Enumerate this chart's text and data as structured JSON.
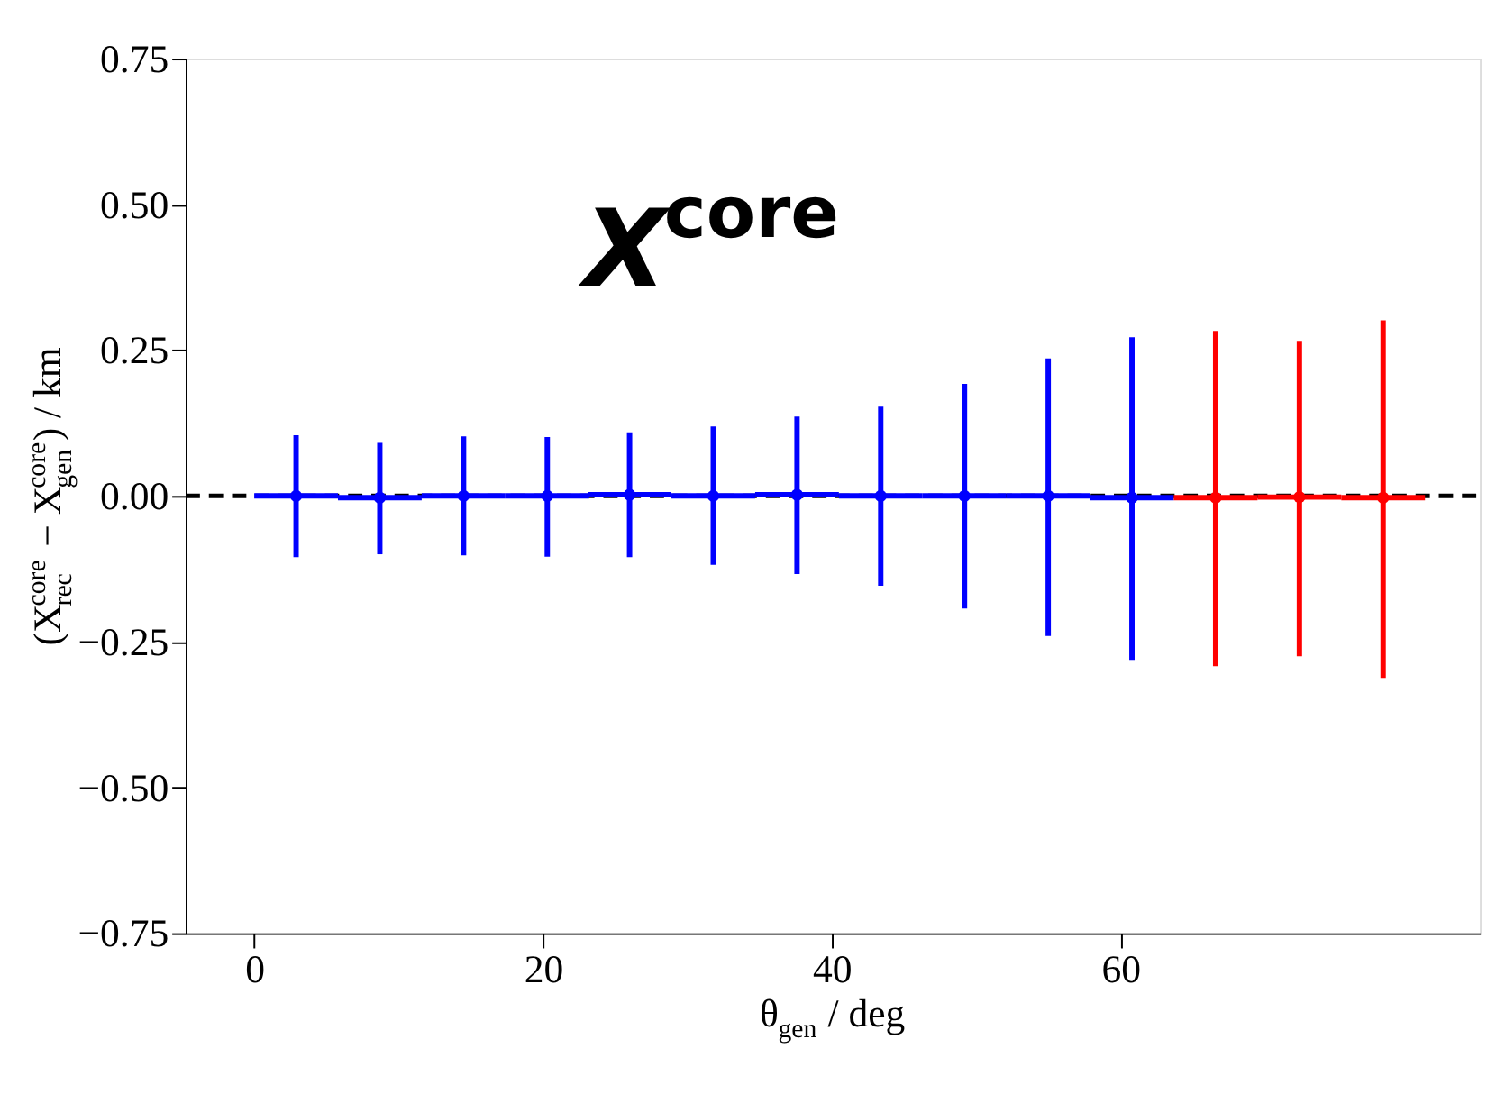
{
  "chart_data": {
    "type": "scatter",
    "xlabel": "θ$_{gen}$ / deg",
    "ylabel": "(X$_{rec}$$^{core}$ − X$_{gen}$$^{core}$) / km",
    "annotations": [
      "X$^{core}$"
    ],
    "xlim": [
      -4.75,
      84.9
    ],
    "xticks": [
      0,
      20,
      40,
      60
    ],
    "ylim": [
      -0.75,
      0.75
    ],
    "yticks": [
      -0.75,
      {
        "value": -0.5,
        "label": "−0.50"
      },
      -0.25,
      {
        "value": 0,
        "label": "0.00"
      },
      0.25,
      {
        "value": 0.5,
        "label": "0.50"
      },
      0.75
    ],
    "grid": false,
    "marker": "circle",
    "ref_lines": [
      {
        "axis": "y",
        "value": 0,
        "color": "#000000",
        "line_style": "dashed"
      }
    ],
    "series": [
      {
        "color": "#0000ff",
        "x": [
          2.9,
          8.7,
          14.5,
          20.3,
          26.0,
          31.8,
          37.6,
          43.4,
          49.2,
          55.0,
          60.8
        ],
        "values": [
          0.0,
          -0.003,
          0.0,
          0.0,
          0.002,
          0.0,
          0.002,
          0.0,
          0.0,
          0.0,
          -0.003
        ],
        "errors": [
          [
            -0.105,
            0.104
          ],
          [
            -0.1,
            0.091
          ],
          [
            -0.102,
            0.102
          ],
          [
            -0.104,
            0.101
          ],
          [
            -0.105,
            0.109
          ],
          [
            -0.118,
            0.119
          ],
          [
            -0.134,
            0.136
          ],
          [
            -0.154,
            0.153
          ],
          [
            -0.193,
            0.192
          ],
          [
            -0.24,
            0.236
          ],
          [
            -0.281,
            0.272
          ]
        ],
        "xerrors": [
          2.9,
          2.9,
          2.9,
          2.9,
          2.9,
          2.9,
          2.9,
          2.9,
          2.9,
          2.9,
          2.9
        ]
      },
      {
        "color": "#ff0000",
        "x": [
          66.6,
          72.4,
          78.2
        ],
        "values": [
          -0.003,
          -0.002,
          -0.003
        ],
        "errors": [
          [
            -0.292,
            0.283
          ],
          [
            -0.275,
            0.266
          ],
          [
            -0.312,
            0.301
          ]
        ],
        "xerrors": [
          2.9,
          2.9,
          2.9
        ]
      }
    ]
  }
}
